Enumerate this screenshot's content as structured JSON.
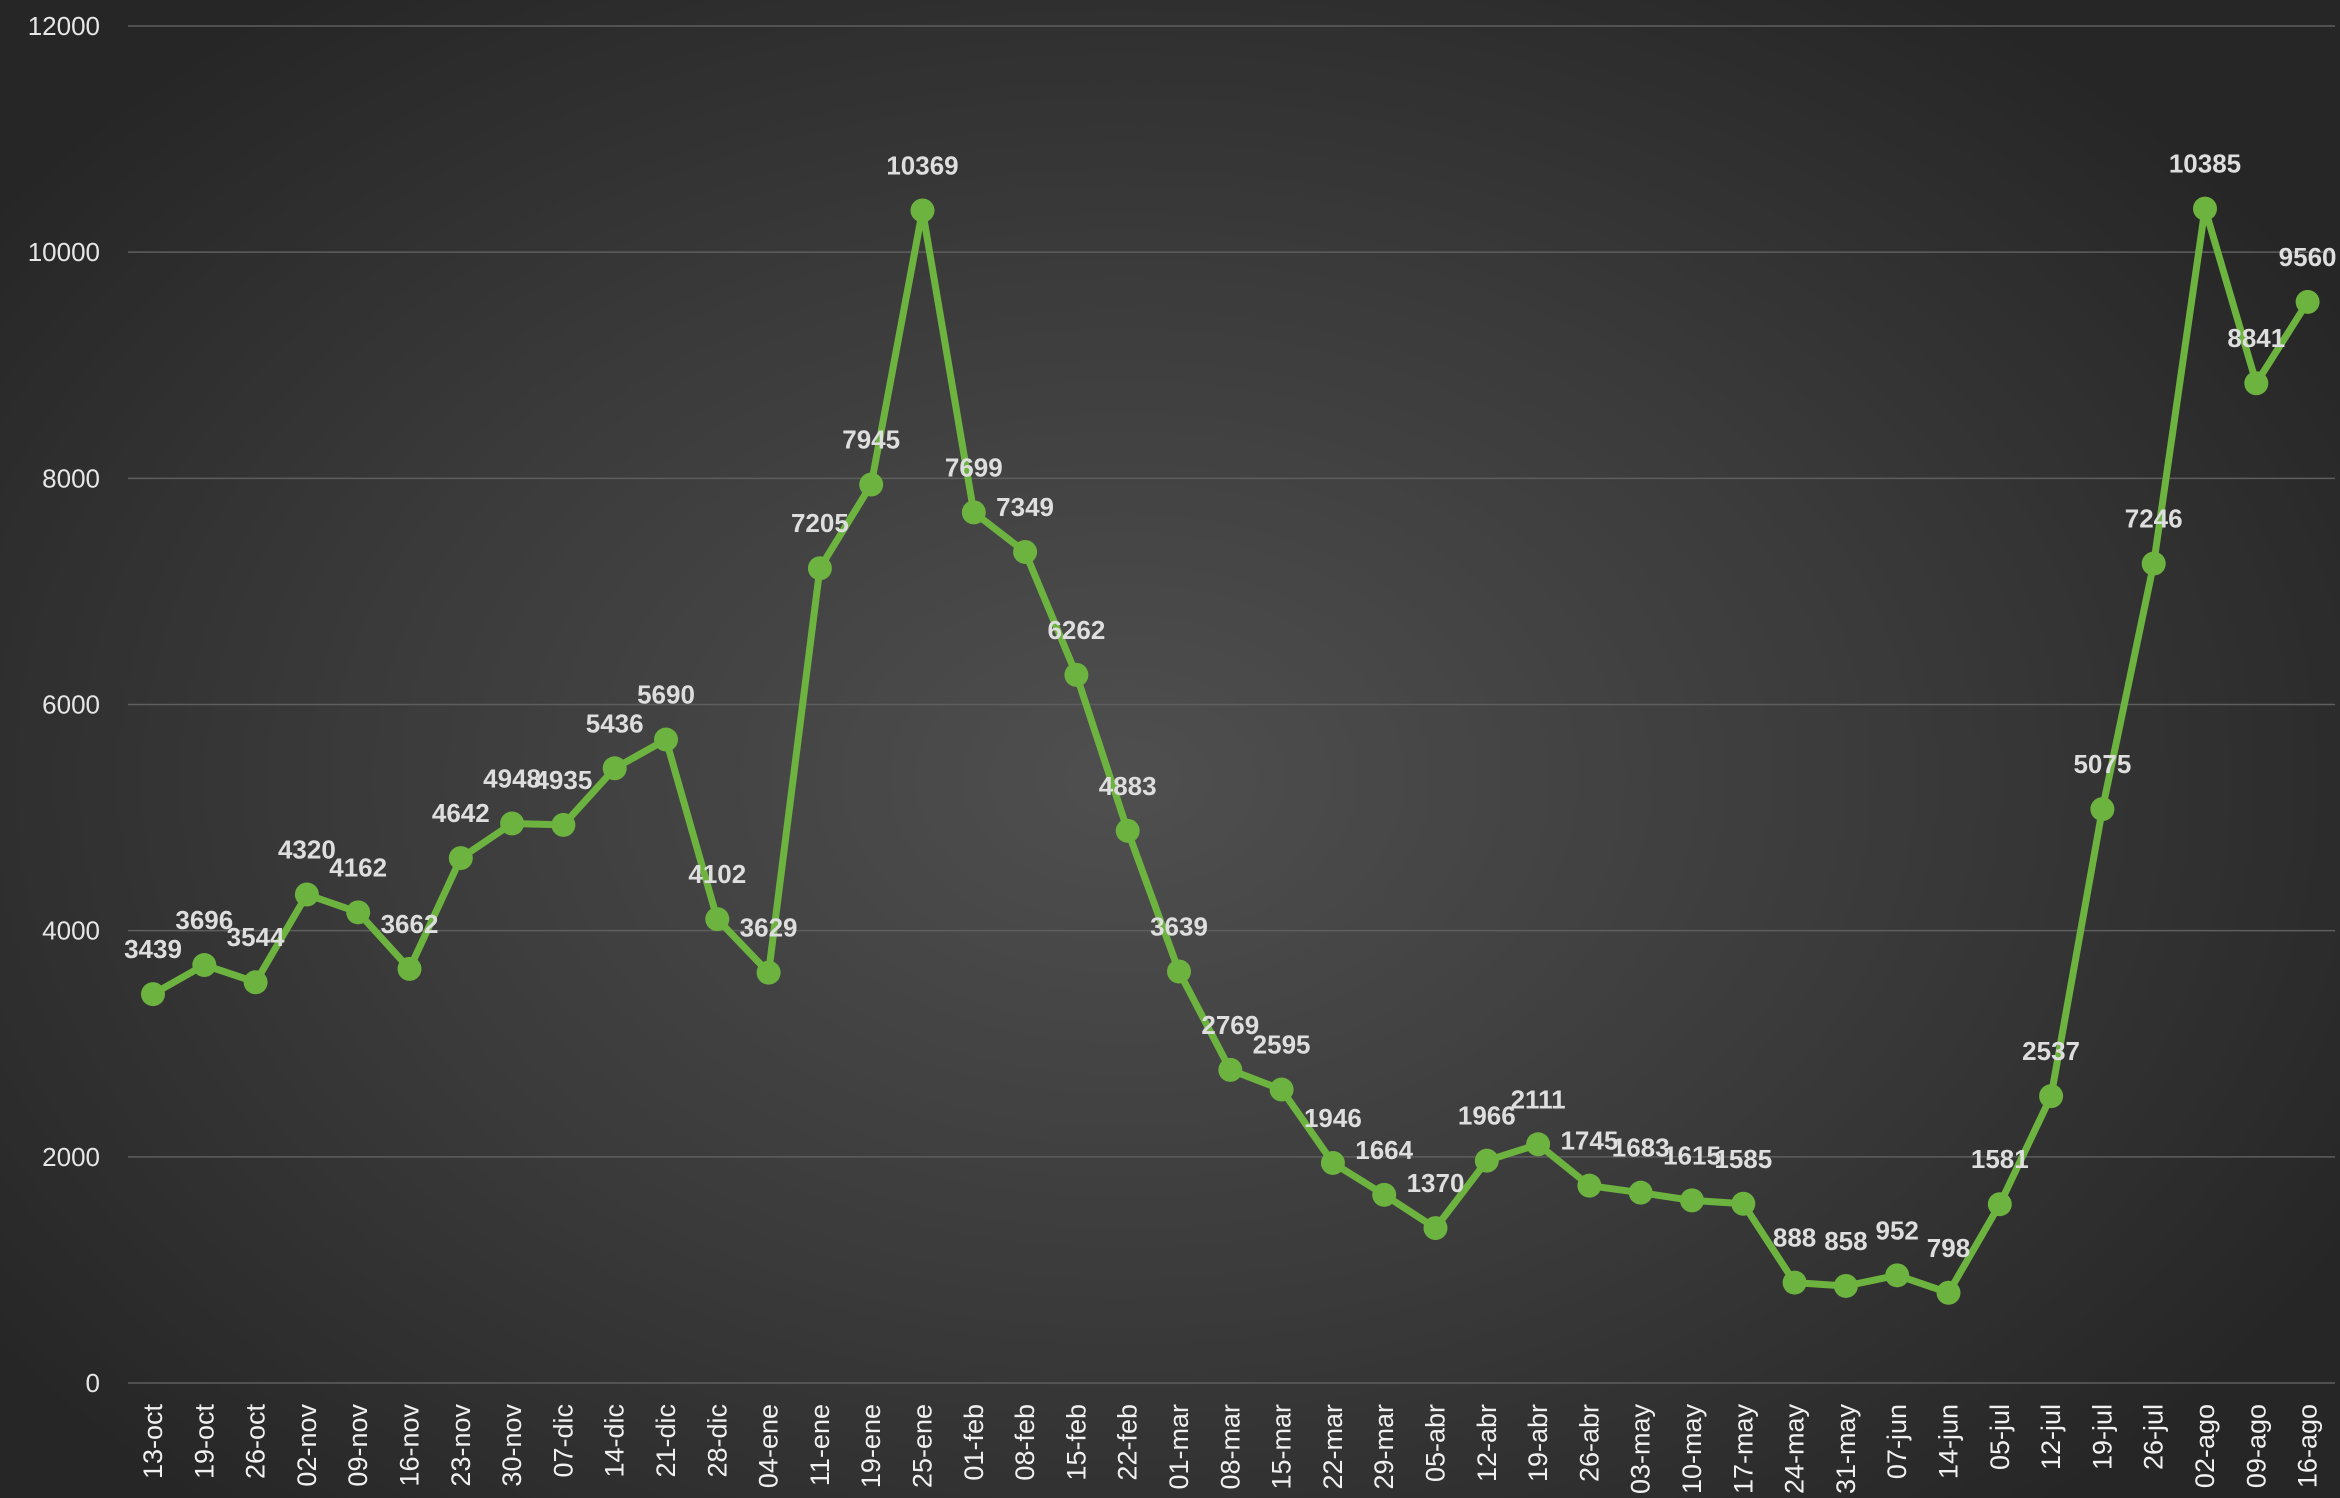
{
  "chart_data": {
    "type": "line",
    "title": "",
    "xlabel": "",
    "ylabel": "",
    "ylim": [
      0,
      12000
    ],
    "yticks": [
      0,
      2000,
      4000,
      6000,
      8000,
      10000,
      12000
    ],
    "grid": true,
    "legend": "none",
    "line_color": "#6db33f",
    "categories": [
      "13-oct",
      "19-oct",
      "26-oct",
      "02-nov",
      "09-nov",
      "16-nov",
      "23-nov",
      "30-nov",
      "07-dic",
      "14-dic",
      "21-dic",
      "28-dic",
      "04-ene",
      "11-ene",
      "19-ene",
      "25-ene",
      "01-feb",
      "08-feb",
      "15-feb",
      "22-feb",
      "01-mar",
      "08-mar",
      "15-mar",
      "22-mar",
      "29-mar",
      "05-abr",
      "12-abr",
      "19-abr",
      "26-abr",
      "03-may",
      "10-may",
      "17-may",
      "24-may",
      "31-may",
      "07-jun",
      "14-jun",
      "05-jul",
      "12-jul",
      "19-jul",
      "26-jul",
      "02-ago",
      "09-ago",
      "16-ago"
    ],
    "values": [
      3439,
      3696,
      3544,
      4320,
      4162,
      3662,
      4642,
      4948,
      4935,
      5436,
      5690,
      4102,
      3629,
      7205,
      7945,
      10369,
      7699,
      7349,
      6262,
      4883,
      3639,
      2769,
      2595,
      1946,
      1664,
      1370,
      1966,
      2111,
      1745,
      1683,
      1615,
      1585,
      888,
      858,
      952,
      798,
      1581,
      2537,
      5075,
      7246,
      10385,
      8841,
      9560
    ]
  }
}
